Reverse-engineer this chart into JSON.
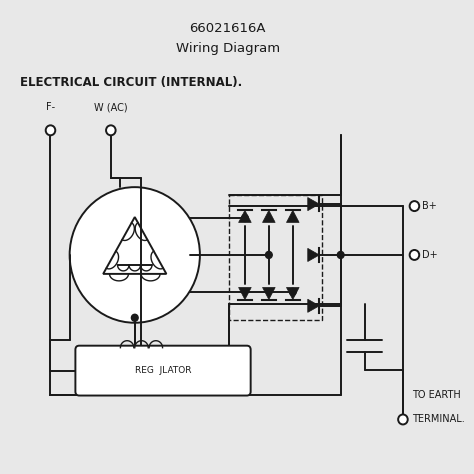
{
  "title_line1": "66021616A",
  "title_line2": "Wiring Diagram",
  "subtitle": "ELECTRICAL CIRCUIT (INTERNAL).",
  "label_F": "F-",
  "label_W": "W (AC)",
  "label_Bplus": "B+",
  "label_Dplus": "D+",
  "label_earth": "TO EARTH",
  "label_terminal": "TERMINAL.",
  "label_reg": "REG  JLATOR",
  "bg_color": "#e8e8e8",
  "line_color": "#1a1a1a",
  "title_fontsize": 9.5,
  "subtitle_fontsize": 8.5,
  "label_fontsize": 7.0,
  "lw": 1.4
}
